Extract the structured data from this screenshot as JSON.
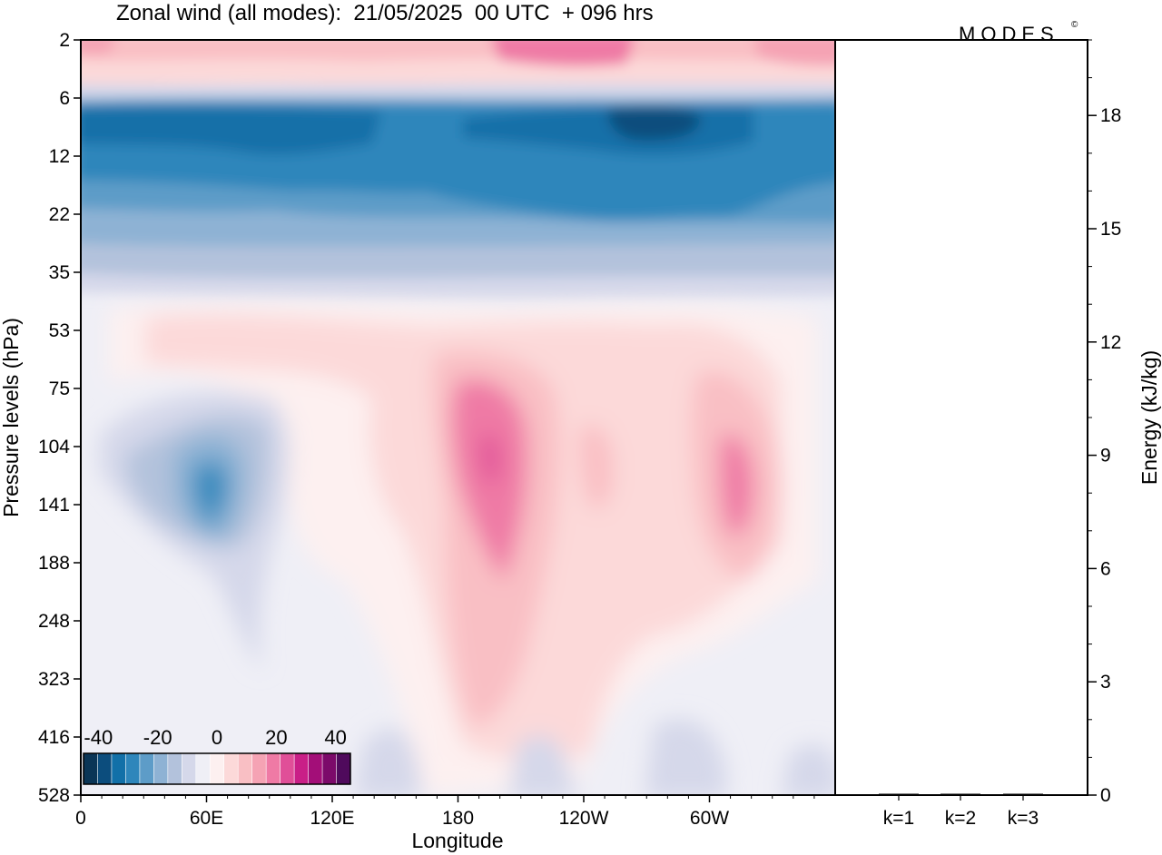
{
  "chart_data": {
    "type": "heatmap",
    "title": "Zonal wind (all modes):  21/05/2025  00 UTC  + 096 hrs",
    "brand": "MODES",
    "brand_mark": "©",
    "xlabel": "Longitude",
    "ylabel": "Pressure levels (hPa)",
    "x_ticks": [
      "0",
      "60E",
      "120E",
      "180",
      "120W",
      "60W"
    ],
    "x_tick_lons": [
      0,
      60,
      120,
      180,
      240,
      300
    ],
    "x_range": [
      0,
      360
    ],
    "y_ticks": [
      "2",
      "6",
      "12",
      "22",
      "35",
      "53",
      "75",
      "104",
      "141",
      "188",
      "248",
      "323",
      "416",
      "528"
    ],
    "colorbar": {
      "ticks": [
        "-40",
        "-20",
        "0",
        "20",
        "40"
      ],
      "levels": [
        -45,
        -40,
        -35,
        -30,
        -25,
        -20,
        -15,
        -10,
        -5,
        0,
        5,
        10,
        15,
        20,
        25,
        30,
        35,
        40,
        45
      ],
      "colors": [
        "#0a3556",
        "#0c4d7d",
        "#1270a8",
        "#2e86bb",
        "#5d9cc8",
        "#8eb2d4",
        "#b3c2dc",
        "#d5d8ea",
        "#efeff6",
        "#fdf0f0",
        "#fcd9d9",
        "#f9bfc4",
        "#f5a3b4",
        "#ef7aa5",
        "#e04f98",
        "#c91f87",
        "#a30e78",
        "#7c0a6a",
        "#4f0a5c"
      ]
    },
    "features": [
      {
        "lon_range": [
          0,
          360
        ],
        "levels": [
          "2",
          "4"
        ],
        "approx_wind": 10
      },
      {
        "lon_range": [
          200,
          300
        ],
        "levels": [
          "2",
          "3"
        ],
        "approx_wind": 25
      },
      {
        "lon_range": [
          0,
          360
        ],
        "levels": [
          "7",
          "11"
        ],
        "approx_wind": -35
      },
      {
        "lon_range": [
          250,
          290
        ],
        "levels": [
          "8",
          "10"
        ],
        "approx_wind": -42
      },
      {
        "lon_range": [
          0,
          360
        ],
        "levels": [
          "12",
          "22"
        ],
        "approx_wind": -25
      },
      {
        "lon_range": [
          0,
          360
        ],
        "levels": [
          "22",
          "35"
        ],
        "approx_wind": -12
      },
      {
        "lon_range": [
          40,
          90
        ],
        "levels": [
          "104",
          "188"
        ],
        "approx_wind": -22
      },
      {
        "lon_range": [
          175,
          215
        ],
        "levels": [
          "75",
          "416"
        ],
        "approx_wind": 22
      },
      {
        "lon_range": [
          290,
          330
        ],
        "levels": [
          "104",
          "248"
        ],
        "approx_wind": 20
      }
    ],
    "energy_axis": {
      "ylabel": "Energy (kJ/kg)",
      "ticks": [
        0,
        3,
        6,
        9,
        12,
        15,
        18
      ],
      "range": [
        0,
        20
      ],
      "categories": [
        "k=1",
        "k=2",
        "k=3"
      ],
      "values": [
        0,
        0,
        0
      ]
    }
  }
}
